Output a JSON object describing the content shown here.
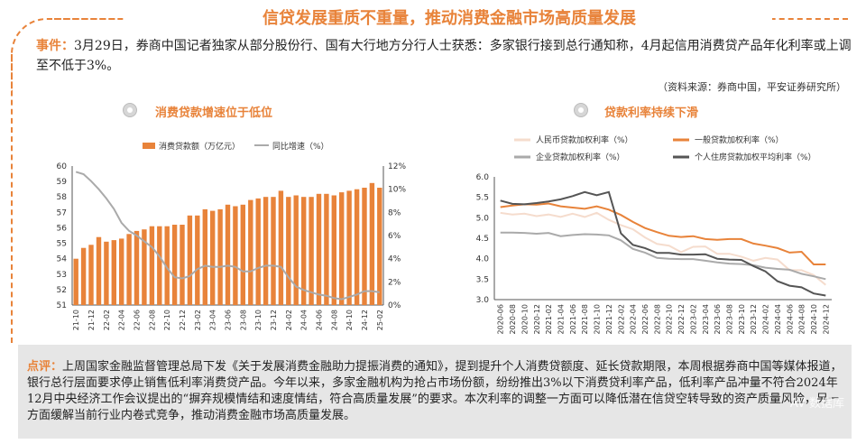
{
  "title": "信贷发展重质不重量，推动消费金融市场高质量发展",
  "event": {
    "label": "事件：",
    "text": "3月29日，券商中国记者独家从部分股份行、国有大行地方分行人士获悉：多家银行接到总行通知称，4月起信用消费贷产品年化利率或上调至不低于3%。"
  },
  "source": "（资料来源：券商中国，平安证券研究所）",
  "left_chart_title": "消费贷款增速位于低位",
  "right_chart_title": "贷款利率持续下滑",
  "comment": {
    "label": "点评：",
    "text": "上周国家金融监督管理总局下发《关于发展消费金融助力提振消费的通知》，提到提升个人消费贷额度、延长贷款期限，本周根据券商中国等媒体报道，银行总行层面要求停止销售低利率消费贷产品。今年以来，多家金融机构为抢占市场份额，纷纷推出3%以下消费贷利率产品，低利率产品冲量不符合2024年12月中央经济工作会议提出的“摒弃规模情结和速度情结，符合高质量发展”的要求。本次利率的调整一方面可以降低潜在信贷空转导致的资产质量风险，另一方面缓解当前行业内卷式竞争，推动消费金融市场高质量发展。"
  },
  "watermark": "AV 数据库",
  "chart_data": [
    {
      "type": "bar",
      "legend": [
        "消费贷款额（万亿元）",
        "同比增速（%）"
      ],
      "categories": [
        "21-10",
        "21-11",
        "21-12",
        "22-01",
        "22-02",
        "22-03",
        "22-04",
        "22-05",
        "22-06",
        "22-07",
        "22-08",
        "22-09",
        "22-10",
        "22-11",
        "22-12",
        "23-01",
        "23-02",
        "23-03",
        "23-04",
        "23-05",
        "23-06",
        "23-07",
        "23-08",
        "23-09",
        "23-10",
        "23-11",
        "23-12",
        "24-01",
        "24-02",
        "24-03",
        "24-04",
        "24-05",
        "24-06",
        "24-07",
        "24-08",
        "24-09",
        "24-10",
        "24-11",
        "24-12",
        "25-01",
        "25-02"
      ],
      "x_tick_labels": [
        "21-10",
        "21-12",
        "22-02",
        "22-04",
        "22-06",
        "22-08",
        "22-10",
        "22-12",
        "23-02",
        "23-04",
        "23-06",
        "23-08",
        "23-10",
        "23-12",
        "24-02",
        "24-04",
        "24-06",
        "24-08",
        "24-10",
        "24-12",
        "25-02"
      ],
      "series": [
        {
          "name": "消费贷款额（万亿元）",
          "axis": "left",
          "color": "#e8833a",
          "values": [
            54.0,
            54.7,
            54.9,
            55.4,
            55.1,
            55.2,
            55.3,
            55.6,
            55.8,
            55.9,
            56.1,
            56.1,
            56.1,
            56.2,
            56.2,
            56.8,
            56.8,
            57.2,
            57.1,
            57.2,
            57.5,
            57.4,
            57.5,
            57.8,
            57.9,
            58.0,
            58.0,
            58.4,
            58.0,
            58.1,
            58.0,
            58.0,
            58.2,
            58.2,
            58.1,
            58.3,
            58.4,
            58.5,
            58.6,
            58.9,
            58.6
          ]
        },
        {
          "name": "同比增速（%）",
          "axis": "right",
          "color": "#aaaaaa",
          "values": [
            11.5,
            11.3,
            10.7,
            10.0,
            9.2,
            8.3,
            7.1,
            6.4,
            6.0,
            5.5,
            5.0,
            4.2,
            3.2,
            2.4,
            2.3,
            2.5,
            3.1,
            3.4,
            3.3,
            3.3,
            3.4,
            3.3,
            2.9,
            2.9,
            3.2,
            3.4,
            3.4,
            3.3,
            2.4,
            1.6,
            1.3,
            1.1,
            0.9,
            0.8,
            0.6,
            0.5,
            0.7,
            0.9,
            1.2,
            1.2,
            1.1
          ]
        }
      ],
      "ylim_left": [
        51,
        60
      ],
      "yticks_left": [
        51,
        52,
        53,
        54,
        55,
        56,
        57,
        58,
        59,
        60
      ],
      "ylim_right": [
        0,
        12
      ],
      "yticks_right": [
        "0%",
        "2%",
        "4%",
        "6%",
        "8%",
        "10%",
        "12%"
      ],
      "legend_position": "top"
    },
    {
      "type": "line",
      "x_tick_labels": [
        "2020-06",
        "2020-08",
        "2020-10",
        "2020-12",
        "2021-02",
        "2021-04",
        "2021-06",
        "2021-08",
        "2021-10",
        "2021-12",
        "2022-02",
        "2022-04",
        "2022-06",
        "2022-08",
        "2022-10",
        "2022-12",
        "2023-02",
        "2023-04",
        "2023-06",
        "2023-08",
        "2023-10",
        "2023-12",
        "2024-02",
        "2024-04",
        "2024-06",
        "2024-08",
        "2024-10",
        "2024-12"
      ],
      "ylim": [
        3.0,
        6.0
      ],
      "yticks": [
        "3.0",
        "3.5",
        "4.0",
        "4.5",
        "5.0",
        "5.5",
        "6.0"
      ],
      "legend_position": "top",
      "series": [
        {
          "name": "人民币贷款加权利率（%）",
          "color": "#f5dccd",
          "values": [
            5.12,
            5.08,
            5.1,
            5.04,
            5.08,
            5.02,
            5.1,
            5.02,
            5.12,
            4.95,
            4.82,
            4.72,
            4.52,
            4.36,
            4.32,
            4.16,
            4.29,
            4.3,
            4.12,
            4.12,
            4.05,
            3.95,
            4.02,
            3.98,
            3.72,
            3.72,
            3.6,
            3.36
          ]
        },
        {
          "name": "一般贷款加权利率（%）",
          "color": "#e8833a",
          "values": [
            5.26,
            5.3,
            5.33,
            5.32,
            5.35,
            5.28,
            5.25,
            5.22,
            5.28,
            5.2,
            5.07,
            4.9,
            4.75,
            4.65,
            4.56,
            4.53,
            4.55,
            4.48,
            4.46,
            4.48,
            4.48,
            4.37,
            4.32,
            4.26,
            4.15,
            4.17,
            3.86,
            3.86
          ]
        },
        {
          "name": "企业贷款加权利率（%）",
          "color": "#aaaaaa",
          "values": [
            4.64,
            4.64,
            4.63,
            4.61,
            4.63,
            4.55,
            4.58,
            4.6,
            4.59,
            4.57,
            4.45,
            4.24,
            4.15,
            4.02,
            4.0,
            3.99,
            3.99,
            3.95,
            3.91,
            3.88,
            3.87,
            3.84,
            3.78,
            3.75,
            3.73,
            3.63,
            3.57,
            3.5
          ]
        },
        {
          "name": "个人住房贷款加权平均利率（%）",
          "color": "#555555",
          "values": [
            5.42,
            5.34,
            5.33,
            5.36,
            5.4,
            5.45,
            5.53,
            5.63,
            5.55,
            5.63,
            4.62,
            4.34,
            4.26,
            4.14,
            4.14,
            4.1,
            4.1,
            4.11,
            4.0,
            3.98,
            3.97,
            3.82,
            3.69,
            3.45,
            3.34,
            3.3,
            3.15,
            3.1
          ]
        }
      ]
    }
  ]
}
